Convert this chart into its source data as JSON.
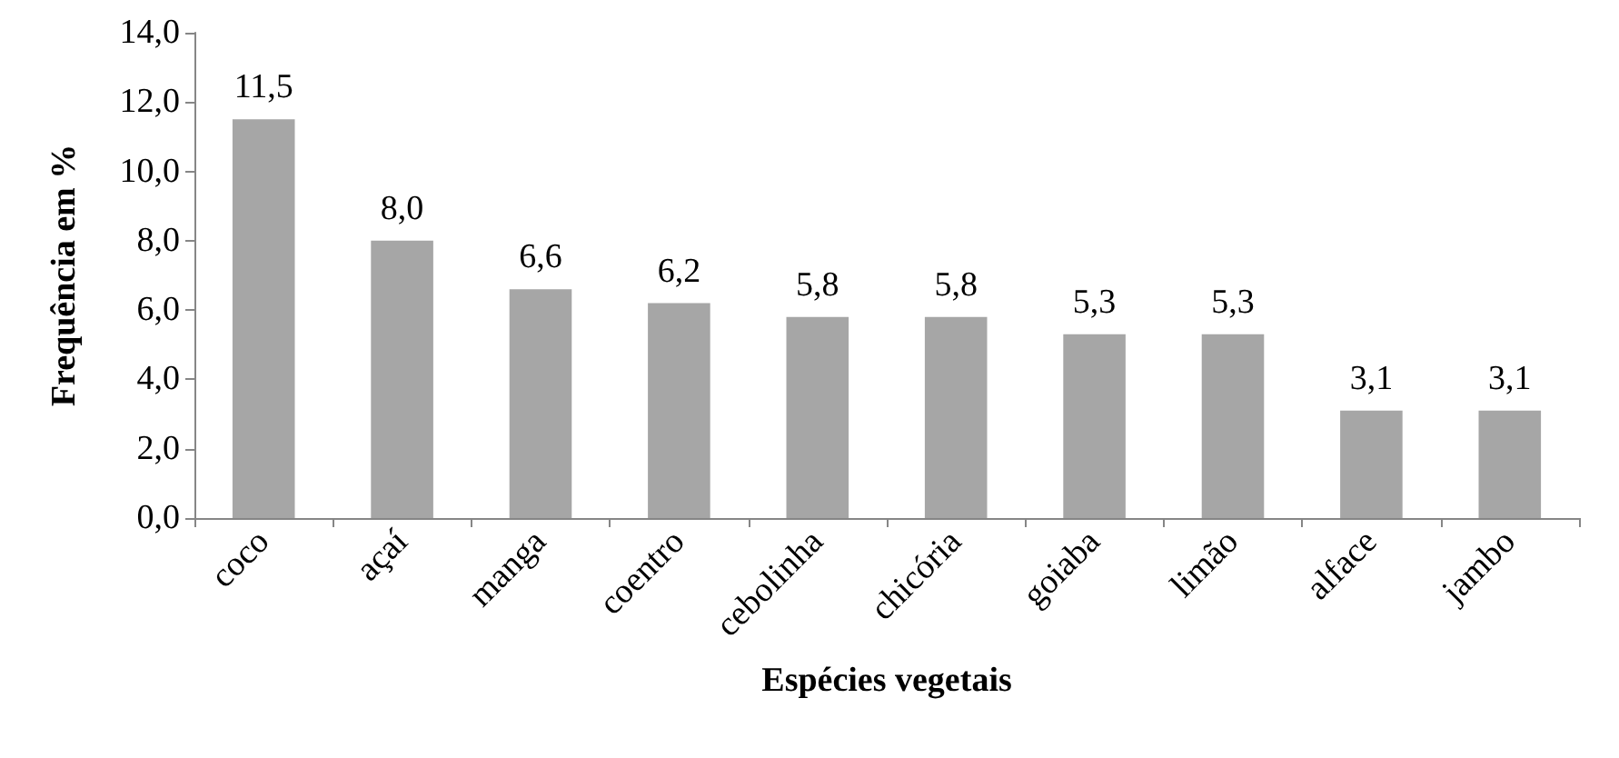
{
  "chart_data": {
    "type": "bar",
    "xlabel": "Espécies vegetais",
    "ylabel": "Frequência em %",
    "categories": [
      "coco",
      "açaí",
      "manga",
      "coentro",
      "cebolinha",
      "chicória",
      "goiaba",
      "limão",
      "alface",
      "jambo"
    ],
    "values": [
      11.5,
      8.0,
      6.6,
      6.2,
      5.8,
      5.8,
      5.3,
      5.3,
      3.1,
      3.1
    ],
    "value_labels": [
      "11,5",
      "8,0",
      "6,6",
      "6,2",
      "5,8",
      "5,8",
      "5,3",
      "5,3",
      "3,1",
      "3,1"
    ],
    "color": "#a6a6a6",
    "ylim": [
      0,
      14
    ],
    "yticks": [
      {
        "value": 0,
        "label": "0,0"
      },
      {
        "value": 2,
        "label": "2,0"
      },
      {
        "value": 4,
        "label": "4,0"
      },
      {
        "value": 6,
        "label": "6,0"
      },
      {
        "value": 8,
        "label": "8,0"
      },
      {
        "value": 10,
        "label": "10,0"
      },
      {
        "value": 12,
        "label": "12,0"
      },
      {
        "value": 14,
        "label": "14,0"
      }
    ],
    "grid": false
  }
}
